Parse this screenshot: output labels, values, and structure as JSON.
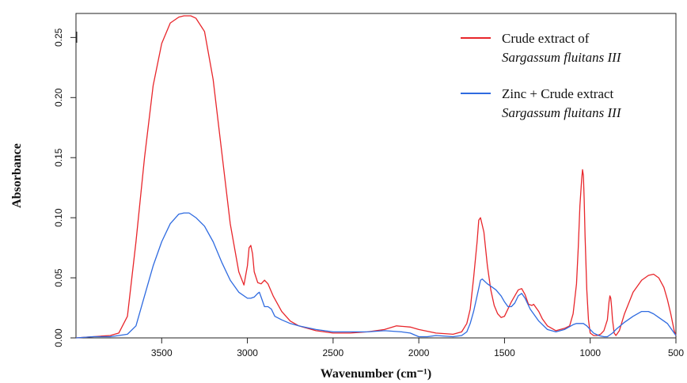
{
  "chart_data": {
    "type": "line",
    "xlabel": "Wavenumber (cm⁻¹)",
    "ylabel": "Absorbance",
    "xlim": [
      4000,
      500
    ],
    "ylim": [
      0,
      0.27
    ],
    "x_reversed": true,
    "x_ticks": [
      3500,
      3000,
      2500,
      2000,
      1500,
      1000,
      500
    ],
    "x_tick_labels": [
      "3500",
      "3000",
      "2500",
      "2000",
      "1500",
      "1000",
      "500"
    ],
    "y_ticks": [
      0.0,
      0.05,
      0.1,
      0.15,
      0.2,
      0.25
    ],
    "y_tick_labels": [
      "0.00",
      "0.05",
      "0.10",
      "0.15",
      "0.20",
      "0.25"
    ],
    "grid": false,
    "legend_position": "top-right",
    "series": [
      {
        "name": "Crude extract of Sargassum fluitans III",
        "legend_line1": "Crude extract of",
        "legend_line2": "Sargassum fluitans III",
        "color": "#e8262b",
        "x": [
          4000,
          3900,
          3850,
          3800,
          3750,
          3700,
          3650,
          3600,
          3550,
          3500,
          3450,
          3400,
          3370,
          3330,
          3300,
          3250,
          3200,
          3150,
          3100,
          3050,
          3020,
          3000,
          2990,
          2980,
          2970,
          2960,
          2940,
          2920,
          2900,
          2880,
          2850,
          2800,
          2750,
          2700,
          2650,
          2600,
          2500,
          2400,
          2300,
          2200,
          2130,
          2050,
          2000,
          1900,
          1800,
          1750,
          1720,
          1700,
          1680,
          1660,
          1650,
          1640,
          1620,
          1600,
          1580,
          1560,
          1540,
          1520,
          1500,
          1460,
          1420,
          1400,
          1380,
          1360,
          1340,
          1330,
          1300,
          1280,
          1250,
          1200,
          1150,
          1120,
          1100,
          1080,
          1070,
          1060,
          1050,
          1045,
          1040,
          1035,
          1030,
          1020,
          1010,
          1000,
          980,
          960,
          940,
          920,
          900,
          890,
          885,
          880,
          875,
          870,
          860,
          850,
          830,
          800,
          750,
          700,
          660,
          630,
          600,
          570,
          550,
          530,
          510,
          500
        ],
        "y": [
          0,
          0.001,
          0.0015,
          0.002,
          0.004,
          0.018,
          0.08,
          0.15,
          0.21,
          0.245,
          0.262,
          0.267,
          0.268,
          0.268,
          0.266,
          0.255,
          0.215,
          0.155,
          0.095,
          0.055,
          0.044,
          0.06,
          0.075,
          0.077,
          0.07,
          0.055,
          0.046,
          0.045,
          0.048,
          0.045,
          0.035,
          0.022,
          0.014,
          0.01,
          0.008,
          0.006,
          0.004,
          0.004,
          0.005,
          0.007,
          0.01,
          0.009,
          0.007,
          0.004,
          0.003,
          0.005,
          0.012,
          0.024,
          0.05,
          0.08,
          0.098,
          0.1,
          0.088,
          0.06,
          0.04,
          0.027,
          0.02,
          0.017,
          0.018,
          0.03,
          0.04,
          0.041,
          0.036,
          0.028,
          0.027,
          0.028,
          0.022,
          0.016,
          0.01,
          0.006,
          0.008,
          0.01,
          0.02,
          0.045,
          0.075,
          0.11,
          0.132,
          0.14,
          0.135,
          0.115,
          0.085,
          0.04,
          0.015,
          0.004,
          0.002,
          0.002,
          0.003,
          0.006,
          0.015,
          0.03,
          0.035,
          0.033,
          0.025,
          0.015,
          0.004,
          0.002,
          0.006,
          0.02,
          0.038,
          0.048,
          0.052,
          0.053,
          0.05,
          0.042,
          0.032,
          0.02,
          0.006,
          0.002
        ]
      },
      {
        "name": "Zinc + Crude extract Sargassum fluitans III",
        "legend_line1": "Zinc + Crude extract",
        "legend_line2": "Sargassum fluitans III",
        "color": "#2f6be0",
        "x": [
          4000,
          3900,
          3800,
          3750,
          3700,
          3650,
          3600,
          3550,
          3500,
          3450,
          3400,
          3370,
          3340,
          3300,
          3250,
          3200,
          3150,
          3100,
          3050,
          3000,
          2980,
          2960,
          2940,
          2930,
          2920,
          2900,
          2880,
          2860,
          2840,
          2800,
          2750,
          2700,
          2600,
          2500,
          2400,
          2300,
          2200,
          2100,
          2050,
          2000,
          1950,
          1900,
          1800,
          1750,
          1720,
          1700,
          1680,
          1660,
          1640,
          1630,
          1600,
          1570,
          1550,
          1520,
          1500,
          1480,
          1460,
          1440,
          1420,
          1400,
          1380,
          1350,
          1300,
          1250,
          1200,
          1150,
          1100,
          1080,
          1060,
          1040,
          1020,
          1000,
          980,
          950,
          920,
          900,
          870,
          850,
          800,
          750,
          700,
          660,
          630,
          600,
          570,
          550,
          520,
          500
        ],
        "y": [
          0,
          0.001,
          0.001,
          0.002,
          0.003,
          0.01,
          0.035,
          0.06,
          0.08,
          0.095,
          0.103,
          0.104,
          0.104,
          0.1,
          0.093,
          0.08,
          0.063,
          0.048,
          0.038,
          0.033,
          0.033,
          0.034,
          0.037,
          0.038,
          0.034,
          0.026,
          0.026,
          0.024,
          0.018,
          0.015,
          0.012,
          0.01,
          0.007,
          0.005,
          0.005,
          0.005,
          0.006,
          0.005,
          0.004,
          0.001,
          0.001,
          0.002,
          0.001,
          0.002,
          0.005,
          0.012,
          0.022,
          0.035,
          0.048,
          0.049,
          0.045,
          0.042,
          0.04,
          0.035,
          0.03,
          0.026,
          0.026,
          0.029,
          0.035,
          0.037,
          0.033,
          0.024,
          0.014,
          0.007,
          0.005,
          0.007,
          0.011,
          0.012,
          0.012,
          0.012,
          0.01,
          0.007,
          0.004,
          0.002,
          0.001,
          0.001,
          0.004,
          0.007,
          0.013,
          0.018,
          0.022,
          0.022,
          0.02,
          0.017,
          0.014,
          0.012,
          0.006,
          0.002
        ]
      }
    ]
  }
}
